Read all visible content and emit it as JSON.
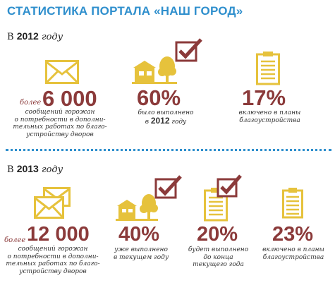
{
  "title": "СТАТИСТИКА ПОРТАЛА «НАШ ГОРОД»",
  "colors": {
    "title": "#2f8fcd",
    "accent": "#8b3a3a",
    "icon": "#e6c23c",
    "divider": "#2f8fcd"
  },
  "section_2012": {
    "prefix": "В",
    "year": "2012",
    "suffix": "году",
    "stats": [
      {
        "icon": "envelope-icon",
        "prefix": "более",
        "value": "6 000",
        "lines": [
          "сообщений горожан",
          "о потребности в дополни-",
          "тельных работах по благо-",
          "устройству дворов"
        ]
      },
      {
        "icon": "house-tree-check-icon",
        "value": "60%",
        "lines": [
          "было выполнено"
        ],
        "year_line_prefix": "в",
        "year_line_year": "2012",
        "year_line_suffix": "году"
      },
      {
        "icon": "clipboard-icon",
        "value": "17%",
        "lines": [
          "включено в планы",
          "благоустройства"
        ]
      }
    ]
  },
  "section_2013": {
    "prefix": "В",
    "year": "2013",
    "suffix": "году",
    "stats": [
      {
        "icon": "envelopes-icon",
        "prefix": "более",
        "value": "12 000",
        "lines": [
          "сообщений горожан",
          "о потребности в дополни-",
          "тельных работах по благо-",
          "устройству дворов"
        ]
      },
      {
        "icon": "house-tree-check-icon",
        "value": "40%",
        "lines": [
          "уже выполнено",
          "в текущем году"
        ]
      },
      {
        "icon": "clipboard-check-icon",
        "value": "20%",
        "lines": [
          "будет выполнено",
          "до конца",
          "текущего года"
        ]
      },
      {
        "icon": "clipboard-icon",
        "value": "23%",
        "lines": [
          "включено в планы",
          "благоустройства"
        ]
      }
    ]
  }
}
